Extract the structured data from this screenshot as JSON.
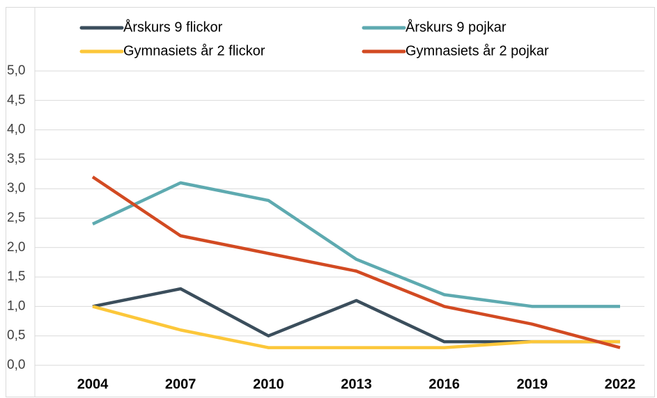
{
  "chart_data": {
    "type": "line",
    "categories": [
      "2004",
      "2007",
      "2010",
      "2013",
      "2016",
      "2019",
      "2022"
    ],
    "series": [
      {
        "name": "Årskurs 9 flickor",
        "color": "#3b4e5c",
        "values": [
          1.0,
          1.3,
          0.5,
          1.1,
          0.4,
          0.4,
          0.4
        ]
      },
      {
        "name": "Årskurs 9 pojkar",
        "color": "#5eaab0",
        "values": [
          2.4,
          3.1,
          2.8,
          1.8,
          1.2,
          1.0,
          1.0
        ]
      },
      {
        "name": "Gymnasiets år 2 flickor",
        "color": "#fcc73a",
        "values": [
          1.0,
          0.6,
          0.3,
          0.3,
          0.3,
          0.4,
          0.4
        ]
      },
      {
        "name": "Gymnasiets år 2 pojkar",
        "color": "#d24a22",
        "values": [
          3.2,
          2.2,
          1.9,
          1.6,
          1.0,
          0.7,
          0.3
        ]
      }
    ],
    "ylim": [
      0,
      5
    ],
    "yticks": [
      {
        "value": 0,
        "label": "0,0"
      },
      {
        "value": 0.5,
        "label": "0,5"
      },
      {
        "value": 1,
        "label": "1,0"
      },
      {
        "value": 1.5,
        "label": "1,5"
      },
      {
        "value": 2,
        "label": "2,0"
      },
      {
        "value": 2.5,
        "label": "2,5"
      },
      {
        "value": 3,
        "label": "3,0"
      },
      {
        "value": 3.5,
        "label": "3,5"
      },
      {
        "value": 4,
        "label": "4,0"
      },
      {
        "value": 4.5,
        "label": "4,5"
      },
      {
        "value": 5,
        "label": "5,0"
      }
    ],
    "grid": true,
    "legend": "top"
  }
}
